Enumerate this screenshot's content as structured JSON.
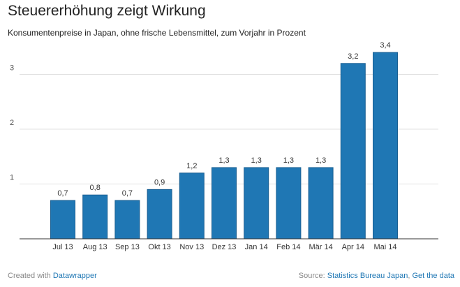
{
  "chart_data": {
    "type": "bar",
    "title": "Steuererhöhung zeigt Wirkung",
    "subtitle": "Konsumentenpreise in Japan, ohne frische Lebensmittel, zum Vorjahr in Prozent",
    "categories": [
      "Jul 13",
      "Aug 13",
      "Sep 13",
      "Okt 13",
      "Nov 13",
      "Dez 13",
      "Jan 14",
      "Feb 14",
      "Mär 14",
      "Apr 14",
      "Mai 14"
    ],
    "values": [
      0.7,
      0.8,
      0.7,
      0.9,
      1.2,
      1.3,
      1.3,
      1.3,
      1.3,
      3.2,
      3.4
    ],
    "value_labels": [
      "0,7",
      "0,8",
      "0,7",
      "0,9",
      "1,2",
      "1,3",
      "1,3",
      "1,3",
      "1,3",
      "3,2",
      "3,4"
    ],
    "yticks": [
      1,
      2,
      3
    ],
    "ytick_labels": [
      "1",
      "2",
      "3"
    ],
    "ylim": [
      0,
      3.5
    ],
    "grid": true,
    "bar_color": "#1f77b4"
  },
  "footer": {
    "created_prefix": "Created with",
    "created_link": "Datawrapper",
    "source_prefix": "Source:",
    "source_link": "Statistics Bureau Japan",
    "separator": ",",
    "data_link": "Get the data"
  },
  "colors": {
    "link": "#1f77b4",
    "grid": "#e0e0e0",
    "axis": "#333333"
  }
}
